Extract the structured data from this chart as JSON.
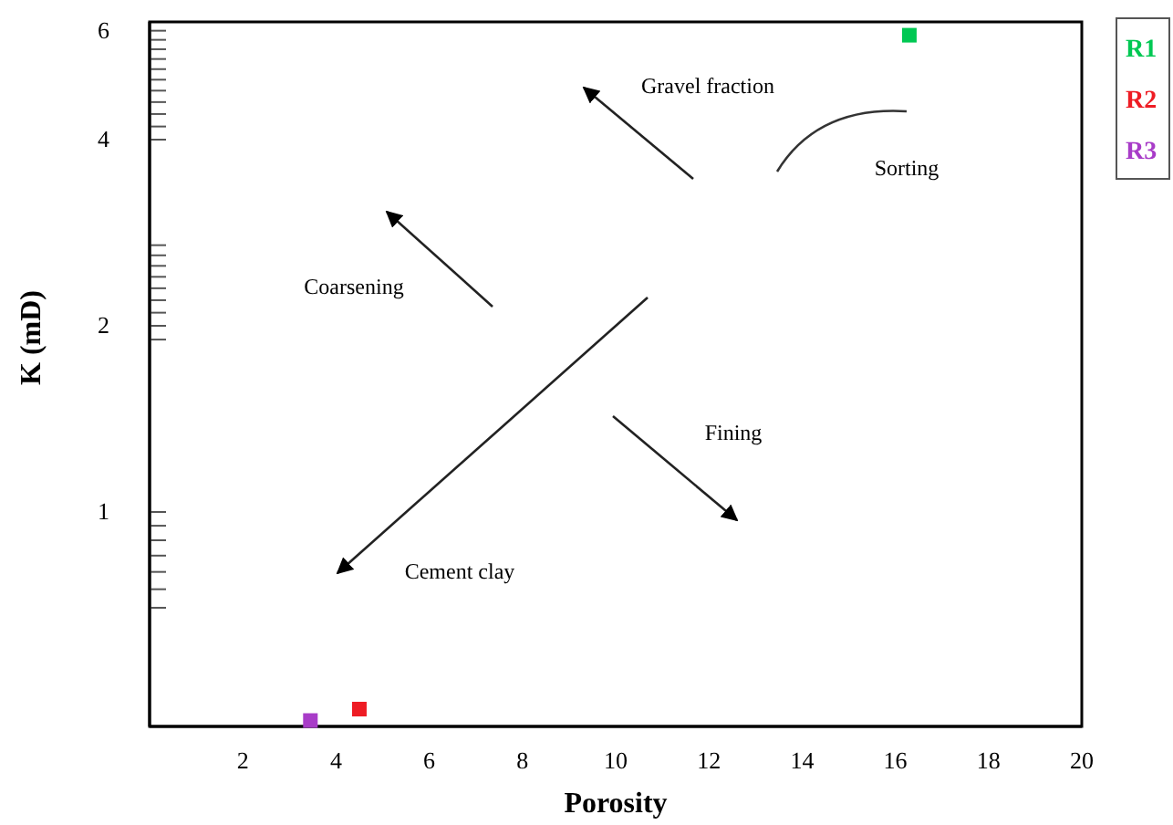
{
  "chart_data": {
    "type": "scatter",
    "xlabel": "Porosity",
    "ylabel": "K (mD)",
    "xlim": [
      0,
      20
    ],
    "xticks": [
      2,
      4,
      6,
      8,
      10,
      12,
      14,
      16,
      18,
      20
    ],
    "ylim": [
      0.45,
      6.2
    ],
    "log": true,
    "yticks": [
      6,
      {
        "value": 5.8,
        "label": null
      },
      {
        "value": 5.6,
        "label": null
      },
      {
        "value": 5.4,
        "label": null
      },
      {
        "value": 5.2,
        "label": null
      },
      {
        "value": 5.0,
        "label": null
      },
      {
        "value": 4.8,
        "label": null
      },
      {
        "value": 4.6,
        "label": null
      },
      {
        "value": 4.4,
        "label": null
      },
      {
        "value": 4.2,
        "label": null
      },
      4,
      {
        "value": 2.7,
        "label": null
      },
      {
        "value": 2.6,
        "label": null
      },
      {
        "value": 2.5,
        "label": null
      },
      {
        "value": 2.4,
        "label": null
      },
      {
        "value": 2.3,
        "label": null
      },
      {
        "value": 2.2,
        "label": null
      },
      {
        "value": 2.1,
        "label": null
      },
      {
        "value": 2.0,
        "label": null
      },
      {
        "value": 1.9,
        "label": null
      },
      2,
      {
        "value": 0.95,
        "label": null
      },
      {
        "value": 0.9,
        "label": null
      },
      {
        "value": 0.85,
        "label": null
      },
      {
        "value": 0.8,
        "label": null
      },
      {
        "value": 0.75,
        "label": null
      },
      {
        "value": 0.7,
        "label": null
      },
      1
    ],
    "marker": "square",
    "grid": false,
    "legend": "right",
    "series": [
      {
        "name": "R1",
        "color": "#00c853",
        "x": [
          16.3
        ],
        "values": [
          5.9
        ]
      },
      {
        "name": "R2",
        "color": "#ee1c24",
        "x": [
          4.5
        ],
        "values": [
          0.48
        ]
      },
      {
        "name": "R3",
        "color": "#a83cc8",
        "x": [
          3.45
        ],
        "values": [
          0.46
        ]
      }
    ],
    "annotations": [
      "Gravel fraction",
      "Sorting",
      "Coarsening",
      "Fining",
      "Cement clay"
    ]
  }
}
